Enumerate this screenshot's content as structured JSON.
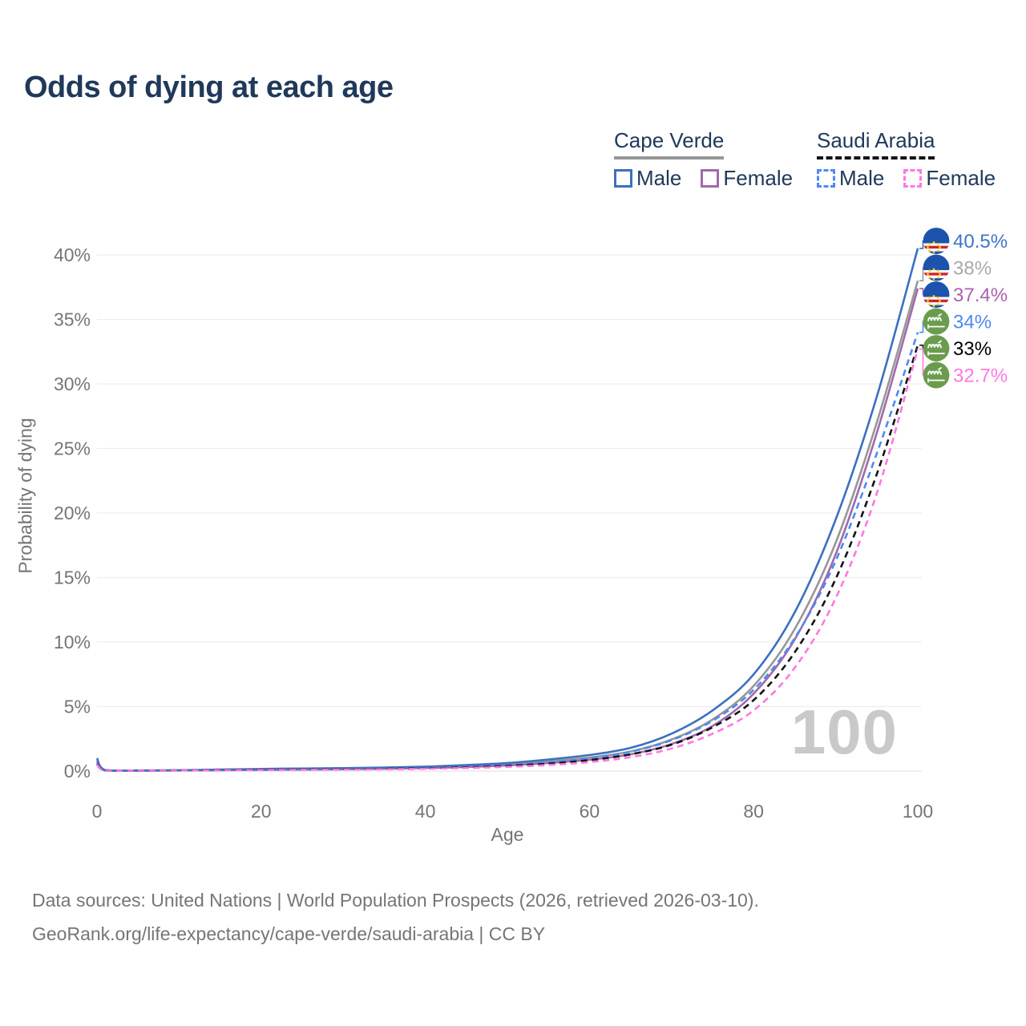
{
  "title": "Odds of dying at each age",
  "watermark": "100",
  "legend": {
    "groups": [
      {
        "label": "Cape Verde",
        "rule_style": "solid",
        "rule_color": "#979797",
        "items": [
          {
            "label": "Male",
            "color": "#3c70bf",
            "style": "solid"
          },
          {
            "label": "Female",
            "color": "#a06aab",
            "style": "solid"
          }
        ]
      },
      {
        "label": "Saudi Arabia",
        "rule_style": "dashed",
        "rule_color": "#141414",
        "items": [
          {
            "label": "Male",
            "color": "#4d8af2",
            "style": "dashed"
          },
          {
            "label": "Female",
            "color": "#fc78e0",
            "style": "dashed"
          }
        ]
      }
    ]
  },
  "footer": {
    "line1": "Data sources: United Nations | World Population Prospects (2026, retrieved 2026-03-10).",
    "line2": "GeoRank.org/life-expectancy/cape-verde/saudi-arabia | CC BY"
  },
  "chart_data": {
    "type": "line",
    "title": "Odds of dying at each age",
    "xlabel": "Age",
    "ylabel": "Probability of dying",
    "xlim": [
      0,
      100
    ],
    "ylim": [
      0,
      42
    ],
    "grid": "horizontal",
    "legend_position": "top-right",
    "x_tick_values": [
      0,
      20,
      40,
      60,
      80,
      100
    ],
    "x_tick_labels": [
      "0",
      "20",
      "40",
      "60",
      "80",
      "100"
    ],
    "y_tick_values": [
      0,
      5,
      10,
      15,
      20,
      25,
      30,
      35,
      40
    ],
    "y_tick_labels": [
      "0%",
      "5%",
      "10%",
      "15%",
      "20%",
      "25%",
      "30%",
      "35%",
      "40%"
    ],
    "x": [
      0,
      1,
      5,
      10,
      15,
      20,
      25,
      30,
      35,
      40,
      45,
      50,
      55,
      60,
      65,
      70,
      75,
      80,
      85,
      90,
      95,
      100
    ],
    "series": [
      {
        "name": "Cape Verde Male",
        "country": "Cape Verde",
        "sex": "Male",
        "color": "#3c70bf",
        "dash": false,
        "flag": "cape-verde",
        "end_label": "40.5%",
        "label_color": "#3f74c9",
        "values": [
          1.0,
          0.08,
          0.05,
          0.07,
          0.12,
          0.17,
          0.2,
          0.23,
          0.28,
          0.35,
          0.47,
          0.63,
          0.9,
          1.25,
          1.8,
          2.9,
          4.7,
          7.5,
          12.3,
          19.5,
          29.0,
          40.5
        ]
      },
      {
        "name": "Cape Verde Both sexes",
        "country": "Cape Verde",
        "sex": "All",
        "color": "#979797",
        "dash": false,
        "flag": "cape-verde",
        "end_label": "38%",
        "label_color": "#a9a9a9",
        "values": [
          0.85,
          0.07,
          0.04,
          0.06,
          0.1,
          0.13,
          0.16,
          0.18,
          0.23,
          0.29,
          0.39,
          0.53,
          0.76,
          1.05,
          1.52,
          2.45,
          4.0,
          6.6,
          11.0,
          17.7,
          27.0,
          38.0
        ]
      },
      {
        "name": "Cape Verde Female",
        "country": "Cape Verde",
        "sex": "Female",
        "color": "#a06aab",
        "dash": false,
        "flag": "cape-verde",
        "end_label": "37.4%",
        "label_color": "#aa62ae",
        "values": [
          0.72,
          0.06,
          0.04,
          0.05,
          0.07,
          0.09,
          0.12,
          0.14,
          0.18,
          0.24,
          0.32,
          0.44,
          0.63,
          0.88,
          1.3,
          2.1,
          3.5,
          6.0,
          10.2,
          16.8,
          26.2,
          37.4
        ]
      },
      {
        "name": "Saudi Arabia Male",
        "country": "Saudi Arabia",
        "sex": "Male",
        "color": "#4d8af2",
        "dash": true,
        "flag": "saudi-arabia",
        "end_label": "34%",
        "label_color": "#4d8af2",
        "values": [
          0.6,
          0.05,
          0.04,
          0.06,
          0.1,
          0.14,
          0.16,
          0.18,
          0.21,
          0.26,
          0.34,
          0.47,
          0.68,
          1.0,
          1.5,
          2.4,
          3.9,
          6.3,
          10.3,
          16.3,
          24.6,
          34.0
        ]
      },
      {
        "name": "Saudi Arabia Both sexes",
        "country": "Saudi Arabia",
        "sex": "All",
        "color": "#141414",
        "dash": true,
        "flag": "saudi-arabia",
        "end_label": "33%",
        "label_color": "#000000",
        "values": [
          0.55,
          0.05,
          0.03,
          0.05,
          0.08,
          0.11,
          0.13,
          0.15,
          0.18,
          0.22,
          0.29,
          0.41,
          0.58,
          0.85,
          1.3,
          2.05,
          3.4,
          5.5,
          9.2,
          14.9,
          23.0,
          33.0
        ]
      },
      {
        "name": "Saudi Arabia Female",
        "country": "Saudi Arabia",
        "sex": "Female",
        "color": "#fc78e0",
        "dash": true,
        "flag": "saudi-arabia",
        "end_label": "32.7%",
        "label_color": "#ff78e2",
        "values": [
          0.5,
          0.04,
          0.03,
          0.04,
          0.06,
          0.08,
          0.1,
          0.12,
          0.14,
          0.18,
          0.24,
          0.33,
          0.47,
          0.7,
          1.08,
          1.75,
          2.9,
          4.7,
          8.0,
          13.4,
          21.5,
          32.7
        ]
      }
    ]
  }
}
